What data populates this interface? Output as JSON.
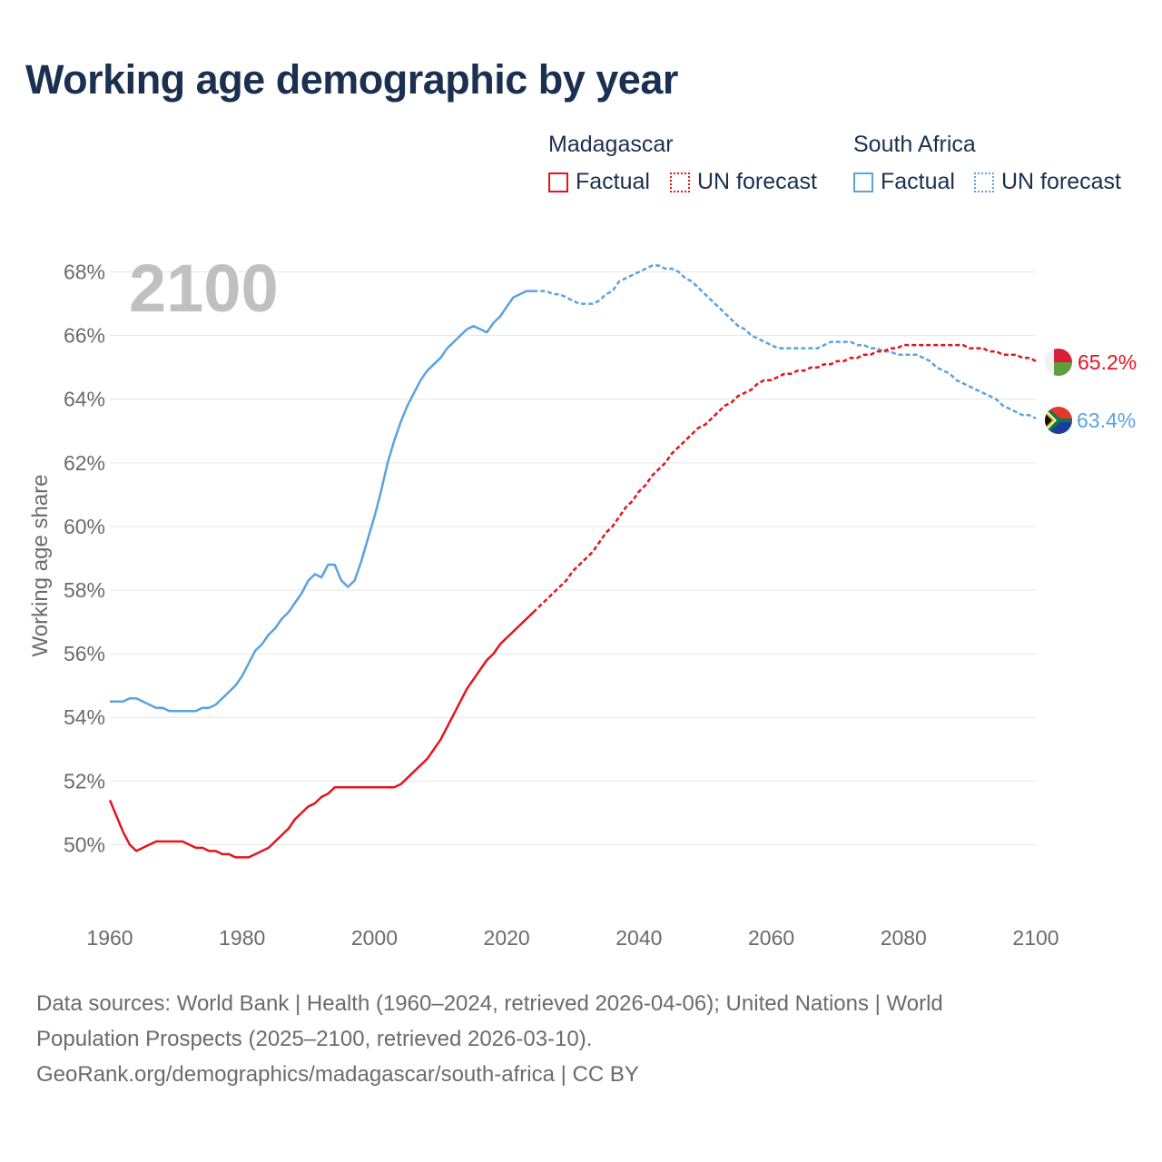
{
  "title": "Working age demographic by year",
  "legend": {
    "groups": [
      {
        "name": "Madagascar",
        "factual_label": "Factual",
        "forecast_label": "UN forecast",
        "color": "#e3141c"
      },
      {
        "name": "South Africa",
        "factual_label": "Factual",
        "forecast_label": "UN forecast",
        "color": "#5aa2e0"
      }
    ]
  },
  "footer": {
    "line1": "Data sources: World Bank | Health (1960–2024, retrieved 2026-04-06); United Nations | World",
    "line2": "Population Prospects (2025–2100, retrieved 2026-03-10).",
    "line3": "GeoRank.org/demographics/madagascar/south-africa | CC BY"
  },
  "chart_data": {
    "type": "line",
    "year_watermark": "2100",
    "ylabel": "Working age share",
    "xlabel": "",
    "xlim": [
      1960,
      2100
    ],
    "ylim": [
      48.5,
      68.5
    ],
    "xticks": [
      "1960",
      "1980",
      "2000",
      "2020",
      "2040",
      "2060",
      "2080",
      "2100"
    ],
    "yticks": [
      "50%",
      "52%",
      "54%",
      "56%",
      "58%",
      "60%",
      "62%",
      "64%",
      "66%",
      "68%"
    ],
    "yticks_values": [
      50,
      52,
      54,
      56,
      58,
      60,
      62,
      64,
      66,
      68
    ],
    "xticks_values": [
      1960,
      1980,
      2000,
      2020,
      2040,
      2060,
      2080,
      2100
    ],
    "series": [
      {
        "name": "Madagascar",
        "color": "#e3141c",
        "end_label": "65.2%",
        "flag": "madagascar-flag-icon",
        "factual": [
          [
            1960,
            51.4
          ],
          [
            1961,
            50.9
          ],
          [
            1962,
            50.4
          ],
          [
            1963,
            50.0
          ],
          [
            1964,
            49.8
          ],
          [
            1965,
            49.9
          ],
          [
            1966,
            50.0
          ],
          [
            1967,
            50.1
          ],
          [
            1968,
            50.1
          ],
          [
            1969,
            50.1
          ],
          [
            1970,
            50.1
          ],
          [
            1971,
            50.1
          ],
          [
            1972,
            50.0
          ],
          [
            1973,
            49.9
          ],
          [
            1974,
            49.9
          ],
          [
            1975,
            49.8
          ],
          [
            1976,
            49.8
          ],
          [
            1977,
            49.7
          ],
          [
            1978,
            49.7
          ],
          [
            1979,
            49.6
          ],
          [
            1980,
            49.6
          ],
          [
            1981,
            49.6
          ],
          [
            1982,
            49.7
          ],
          [
            1983,
            49.8
          ],
          [
            1984,
            49.9
          ],
          [
            1985,
            50.1
          ],
          [
            1986,
            50.3
          ],
          [
            1987,
            50.5
          ],
          [
            1988,
            50.8
          ],
          [
            1989,
            51.0
          ],
          [
            1990,
            51.2
          ],
          [
            1991,
            51.3
          ],
          [
            1992,
            51.5
          ],
          [
            1993,
            51.6
          ],
          [
            1994,
            51.8
          ],
          [
            1995,
            51.8
          ],
          [
            1996,
            51.8
          ],
          [
            1997,
            51.8
          ],
          [
            1998,
            51.8
          ],
          [
            1999,
            51.8
          ],
          [
            2000,
            51.8
          ],
          [
            2001,
            51.8
          ],
          [
            2002,
            51.8
          ],
          [
            2003,
            51.8
          ],
          [
            2004,
            51.9
          ],
          [
            2005,
            52.1
          ],
          [
            2006,
            52.3
          ],
          [
            2007,
            52.5
          ],
          [
            2008,
            52.7
          ],
          [
            2009,
            53.0
          ],
          [
            2010,
            53.3
          ],
          [
            2011,
            53.7
          ],
          [
            2012,
            54.1
          ],
          [
            2013,
            54.5
          ],
          [
            2014,
            54.9
          ],
          [
            2015,
            55.2
          ],
          [
            2016,
            55.5
          ],
          [
            2017,
            55.8
          ],
          [
            2018,
            56.0
          ],
          [
            2019,
            56.3
          ],
          [
            2020,
            56.5
          ],
          [
            2021,
            56.7
          ],
          [
            2022,
            56.9
          ],
          [
            2023,
            57.1
          ],
          [
            2024,
            57.3
          ]
        ],
        "forecast": [
          [
            2024,
            57.3
          ],
          [
            2025,
            57.5
          ],
          [
            2026,
            57.7
          ],
          [
            2027,
            57.9
          ],
          [
            2028,
            58.1
          ],
          [
            2029,
            58.3
          ],
          [
            2030,
            58.6
          ],
          [
            2031,
            58.8
          ],
          [
            2032,
            59.0
          ],
          [
            2033,
            59.2
          ],
          [
            2034,
            59.5
          ],
          [
            2035,
            59.8
          ],
          [
            2036,
            60.0
          ],
          [
            2037,
            60.3
          ],
          [
            2038,
            60.6
          ],
          [
            2039,
            60.8
          ],
          [
            2040,
            61.1
          ],
          [
            2041,
            61.3
          ],
          [
            2042,
            61.6
          ],
          [
            2043,
            61.8
          ],
          [
            2044,
            62.0
          ],
          [
            2045,
            62.3
          ],
          [
            2046,
            62.5
          ],
          [
            2047,
            62.7
          ],
          [
            2048,
            62.9
          ],
          [
            2049,
            63.1
          ],
          [
            2050,
            63.2
          ],
          [
            2051,
            63.4
          ],
          [
            2052,
            63.6
          ],
          [
            2053,
            63.8
          ],
          [
            2054,
            63.9
          ],
          [
            2055,
            64.1
          ],
          [
            2056,
            64.2
          ],
          [
            2057,
            64.3
          ],
          [
            2058,
            64.5
          ],
          [
            2059,
            64.6
          ],
          [
            2060,
            64.6
          ],
          [
            2061,
            64.7
          ],
          [
            2062,
            64.8
          ],
          [
            2063,
            64.8
          ],
          [
            2064,
            64.9
          ],
          [
            2065,
            64.9
          ],
          [
            2066,
            65.0
          ],
          [
            2067,
            65.0
          ],
          [
            2068,
            65.1
          ],
          [
            2069,
            65.1
          ],
          [
            2070,
            65.2
          ],
          [
            2071,
            65.2
          ],
          [
            2072,
            65.3
          ],
          [
            2073,
            65.3
          ],
          [
            2074,
            65.4
          ],
          [
            2075,
            65.4
          ],
          [
            2076,
            65.5
          ],
          [
            2077,
            65.5
          ],
          [
            2078,
            65.6
          ],
          [
            2079,
            65.6
          ],
          [
            2080,
            65.7
          ],
          [
            2081,
            65.7
          ],
          [
            2082,
            65.7
          ],
          [
            2083,
            65.7
          ],
          [
            2084,
            65.7
          ],
          [
            2085,
            65.7
          ],
          [
            2086,
            65.7
          ],
          [
            2087,
            65.7
          ],
          [
            2088,
            65.7
          ],
          [
            2089,
            65.7
          ],
          [
            2090,
            65.6
          ],
          [
            2091,
            65.6
          ],
          [
            2092,
            65.6
          ],
          [
            2093,
            65.5
          ],
          [
            2094,
            65.5
          ],
          [
            2095,
            65.4
          ],
          [
            2096,
            65.4
          ],
          [
            2097,
            65.4
          ],
          [
            2098,
            65.3
          ],
          [
            2099,
            65.3
          ],
          [
            2100,
            65.2
          ]
        ]
      },
      {
        "name": "South Africa",
        "color": "#5aa2e0",
        "end_label": "63.4%",
        "flag": "south-africa-flag-icon",
        "factual": [
          [
            1960,
            54.5
          ],
          [
            1961,
            54.5
          ],
          [
            1962,
            54.5
          ],
          [
            1963,
            54.6
          ],
          [
            1964,
            54.6
          ],
          [
            1965,
            54.5
          ],
          [
            1966,
            54.4
          ],
          [
            1967,
            54.3
          ],
          [
            1968,
            54.3
          ],
          [
            1969,
            54.2
          ],
          [
            1970,
            54.2
          ],
          [
            1971,
            54.2
          ],
          [
            1972,
            54.2
          ],
          [
            1973,
            54.2
          ],
          [
            1974,
            54.3
          ],
          [
            1975,
            54.3
          ],
          [
            1976,
            54.4
          ],
          [
            1977,
            54.6
          ],
          [
            1978,
            54.8
          ],
          [
            1979,
            55.0
          ],
          [
            1980,
            55.3
          ],
          [
            1981,
            55.7
          ],
          [
            1982,
            56.1
          ],
          [
            1983,
            56.3
          ],
          [
            1984,
            56.6
          ],
          [
            1985,
            56.8
          ],
          [
            1986,
            57.1
          ],
          [
            1987,
            57.3
          ],
          [
            1988,
            57.6
          ],
          [
            1989,
            57.9
          ],
          [
            1990,
            58.3
          ],
          [
            1991,
            58.5
          ],
          [
            1992,
            58.4
          ],
          [
            1993,
            58.8
          ],
          [
            1994,
            58.8
          ],
          [
            1995,
            58.3
          ],
          [
            1996,
            58.1
          ],
          [
            1997,
            58.3
          ],
          [
            1998,
            58.9
          ],
          [
            1999,
            59.6
          ],
          [
            2000,
            60.3
          ],
          [
            2001,
            61.1
          ],
          [
            2002,
            62.0
          ],
          [
            2003,
            62.7
          ],
          [
            2004,
            63.3
          ],
          [
            2005,
            63.8
          ],
          [
            2006,
            64.2
          ],
          [
            2007,
            64.6
          ],
          [
            2008,
            64.9
          ],
          [
            2009,
            65.1
          ],
          [
            2010,
            65.3
          ],
          [
            2011,
            65.6
          ],
          [
            2012,
            65.8
          ],
          [
            2013,
            66.0
          ],
          [
            2014,
            66.2
          ],
          [
            2015,
            66.3
          ],
          [
            2016,
            66.2
          ],
          [
            2017,
            66.1
          ],
          [
            2018,
            66.4
          ],
          [
            2019,
            66.6
          ],
          [
            2020,
            66.9
          ],
          [
            2021,
            67.2
          ],
          [
            2022,
            67.3
          ],
          [
            2023,
            67.4
          ],
          [
            2024,
            67.4
          ]
        ],
        "forecast": [
          [
            2024,
            67.4
          ],
          [
            2025,
            67.4
          ],
          [
            2026,
            67.4
          ],
          [
            2027,
            67.3
          ],
          [
            2028,
            67.3
          ],
          [
            2029,
            67.2
          ],
          [
            2030,
            67.1
          ],
          [
            2031,
            67.0
          ],
          [
            2032,
            67.0
          ],
          [
            2033,
            67.0
          ],
          [
            2034,
            67.1
          ],
          [
            2035,
            67.3
          ],
          [
            2036,
            67.4
          ],
          [
            2037,
            67.7
          ],
          [
            2038,
            67.8
          ],
          [
            2039,
            67.9
          ],
          [
            2040,
            68.0
          ],
          [
            2041,
            68.1
          ],
          [
            2042,
            68.2
          ],
          [
            2043,
            68.2
          ],
          [
            2044,
            68.1
          ],
          [
            2045,
            68.1
          ],
          [
            2046,
            68.0
          ],
          [
            2047,
            67.8
          ],
          [
            2048,
            67.7
          ],
          [
            2049,
            67.5
          ],
          [
            2050,
            67.3
          ],
          [
            2051,
            67.1
          ],
          [
            2052,
            66.9
          ],
          [
            2053,
            66.7
          ],
          [
            2054,
            66.5
          ],
          [
            2055,
            66.3
          ],
          [
            2056,
            66.2
          ],
          [
            2057,
            66.0
          ],
          [
            2058,
            65.9
          ],
          [
            2059,
            65.8
          ],
          [
            2060,
            65.7
          ],
          [
            2061,
            65.6
          ],
          [
            2062,
            65.6
          ],
          [
            2063,
            65.6
          ],
          [
            2064,
            65.6
          ],
          [
            2065,
            65.6
          ],
          [
            2066,
            65.6
          ],
          [
            2067,
            65.6
          ],
          [
            2068,
            65.7
          ],
          [
            2069,
            65.8
          ],
          [
            2070,
            65.8
          ],
          [
            2071,
            65.8
          ],
          [
            2072,
            65.8
          ],
          [
            2073,
            65.7
          ],
          [
            2074,
            65.7
          ],
          [
            2075,
            65.6
          ],
          [
            2076,
            65.6
          ],
          [
            2077,
            65.5
          ],
          [
            2078,
            65.5
          ],
          [
            2079,
            65.4
          ],
          [
            2080,
            65.4
          ],
          [
            2081,
            65.4
          ],
          [
            2082,
            65.4
          ],
          [
            2083,
            65.3
          ],
          [
            2084,
            65.2
          ],
          [
            2085,
            65.0
          ],
          [
            2086,
            64.9
          ],
          [
            2087,
            64.8
          ],
          [
            2088,
            64.6
          ],
          [
            2089,
            64.5
          ],
          [
            2090,
            64.4
          ],
          [
            2091,
            64.3
          ],
          [
            2092,
            64.2
          ],
          [
            2093,
            64.1
          ],
          [
            2094,
            64.0
          ],
          [
            2095,
            63.8
          ],
          [
            2096,
            63.7
          ],
          [
            2097,
            63.6
          ],
          [
            2098,
            63.5
          ],
          [
            2099,
            63.5
          ],
          [
            2100,
            63.4
          ]
        ]
      }
    ]
  }
}
